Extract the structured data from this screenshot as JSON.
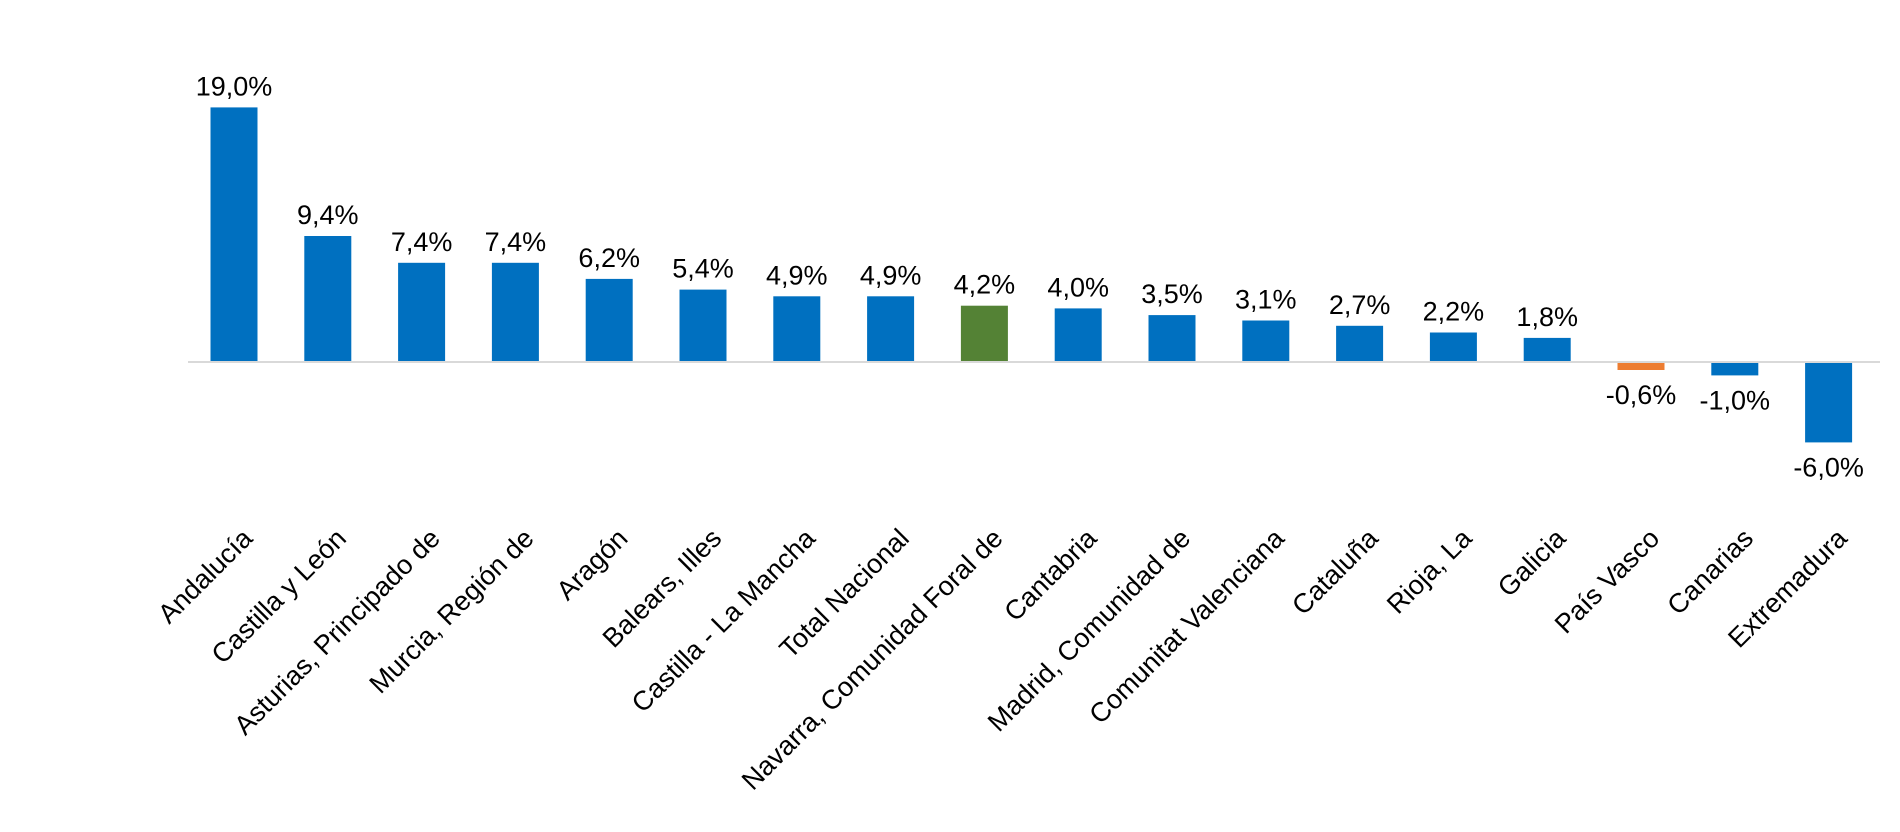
{
  "chart_data": {
    "type": "bar",
    "title": "",
    "xlabel": "",
    "ylabel": "",
    "ylim": [
      -6,
      19
    ],
    "grid": false,
    "legend": "none",
    "categories": [
      "Andalucía",
      "Castilla y León",
      "Asturias, Principado de",
      "Murcia, Región de",
      "Aragón",
      "Balears, Illes",
      "Castilla - La Mancha",
      "Total Nacional",
      "Navarra, Comunidad Foral de",
      "Cantabria",
      "Madrid, Comunidad de",
      "Comunitat Valenciana",
      "Cataluña",
      "Rioja, La",
      "Galicia",
      "País Vasco",
      "Canarias",
      "Extremadura"
    ],
    "values": [
      19.0,
      9.4,
      7.4,
      7.4,
      6.2,
      5.4,
      4.9,
      4.9,
      4.2,
      4.0,
      3.5,
      3.1,
      2.7,
      2.2,
      1.8,
      -0.6,
      -1.0,
      -6.0
    ],
    "value_labels": [
      "19,0%",
      "9,4%",
      "7,4%",
      "7,4%",
      "6,2%",
      "5,4%",
      "4,9%",
      "4,9%",
      "4,2%",
      "4,0%",
      "3,5%",
      "3,1%",
      "2,7%",
      "2,2%",
      "1,8%",
      "-0,6%",
      "-1,0%",
      "-6,0%"
    ],
    "colors": {
      "default": "#0070C0",
      "highlight": "#548235",
      "accent": "#ED7D31",
      "axis": "#D9D9D9"
    },
    "highlight_index": 8,
    "accent_index": 15
  }
}
